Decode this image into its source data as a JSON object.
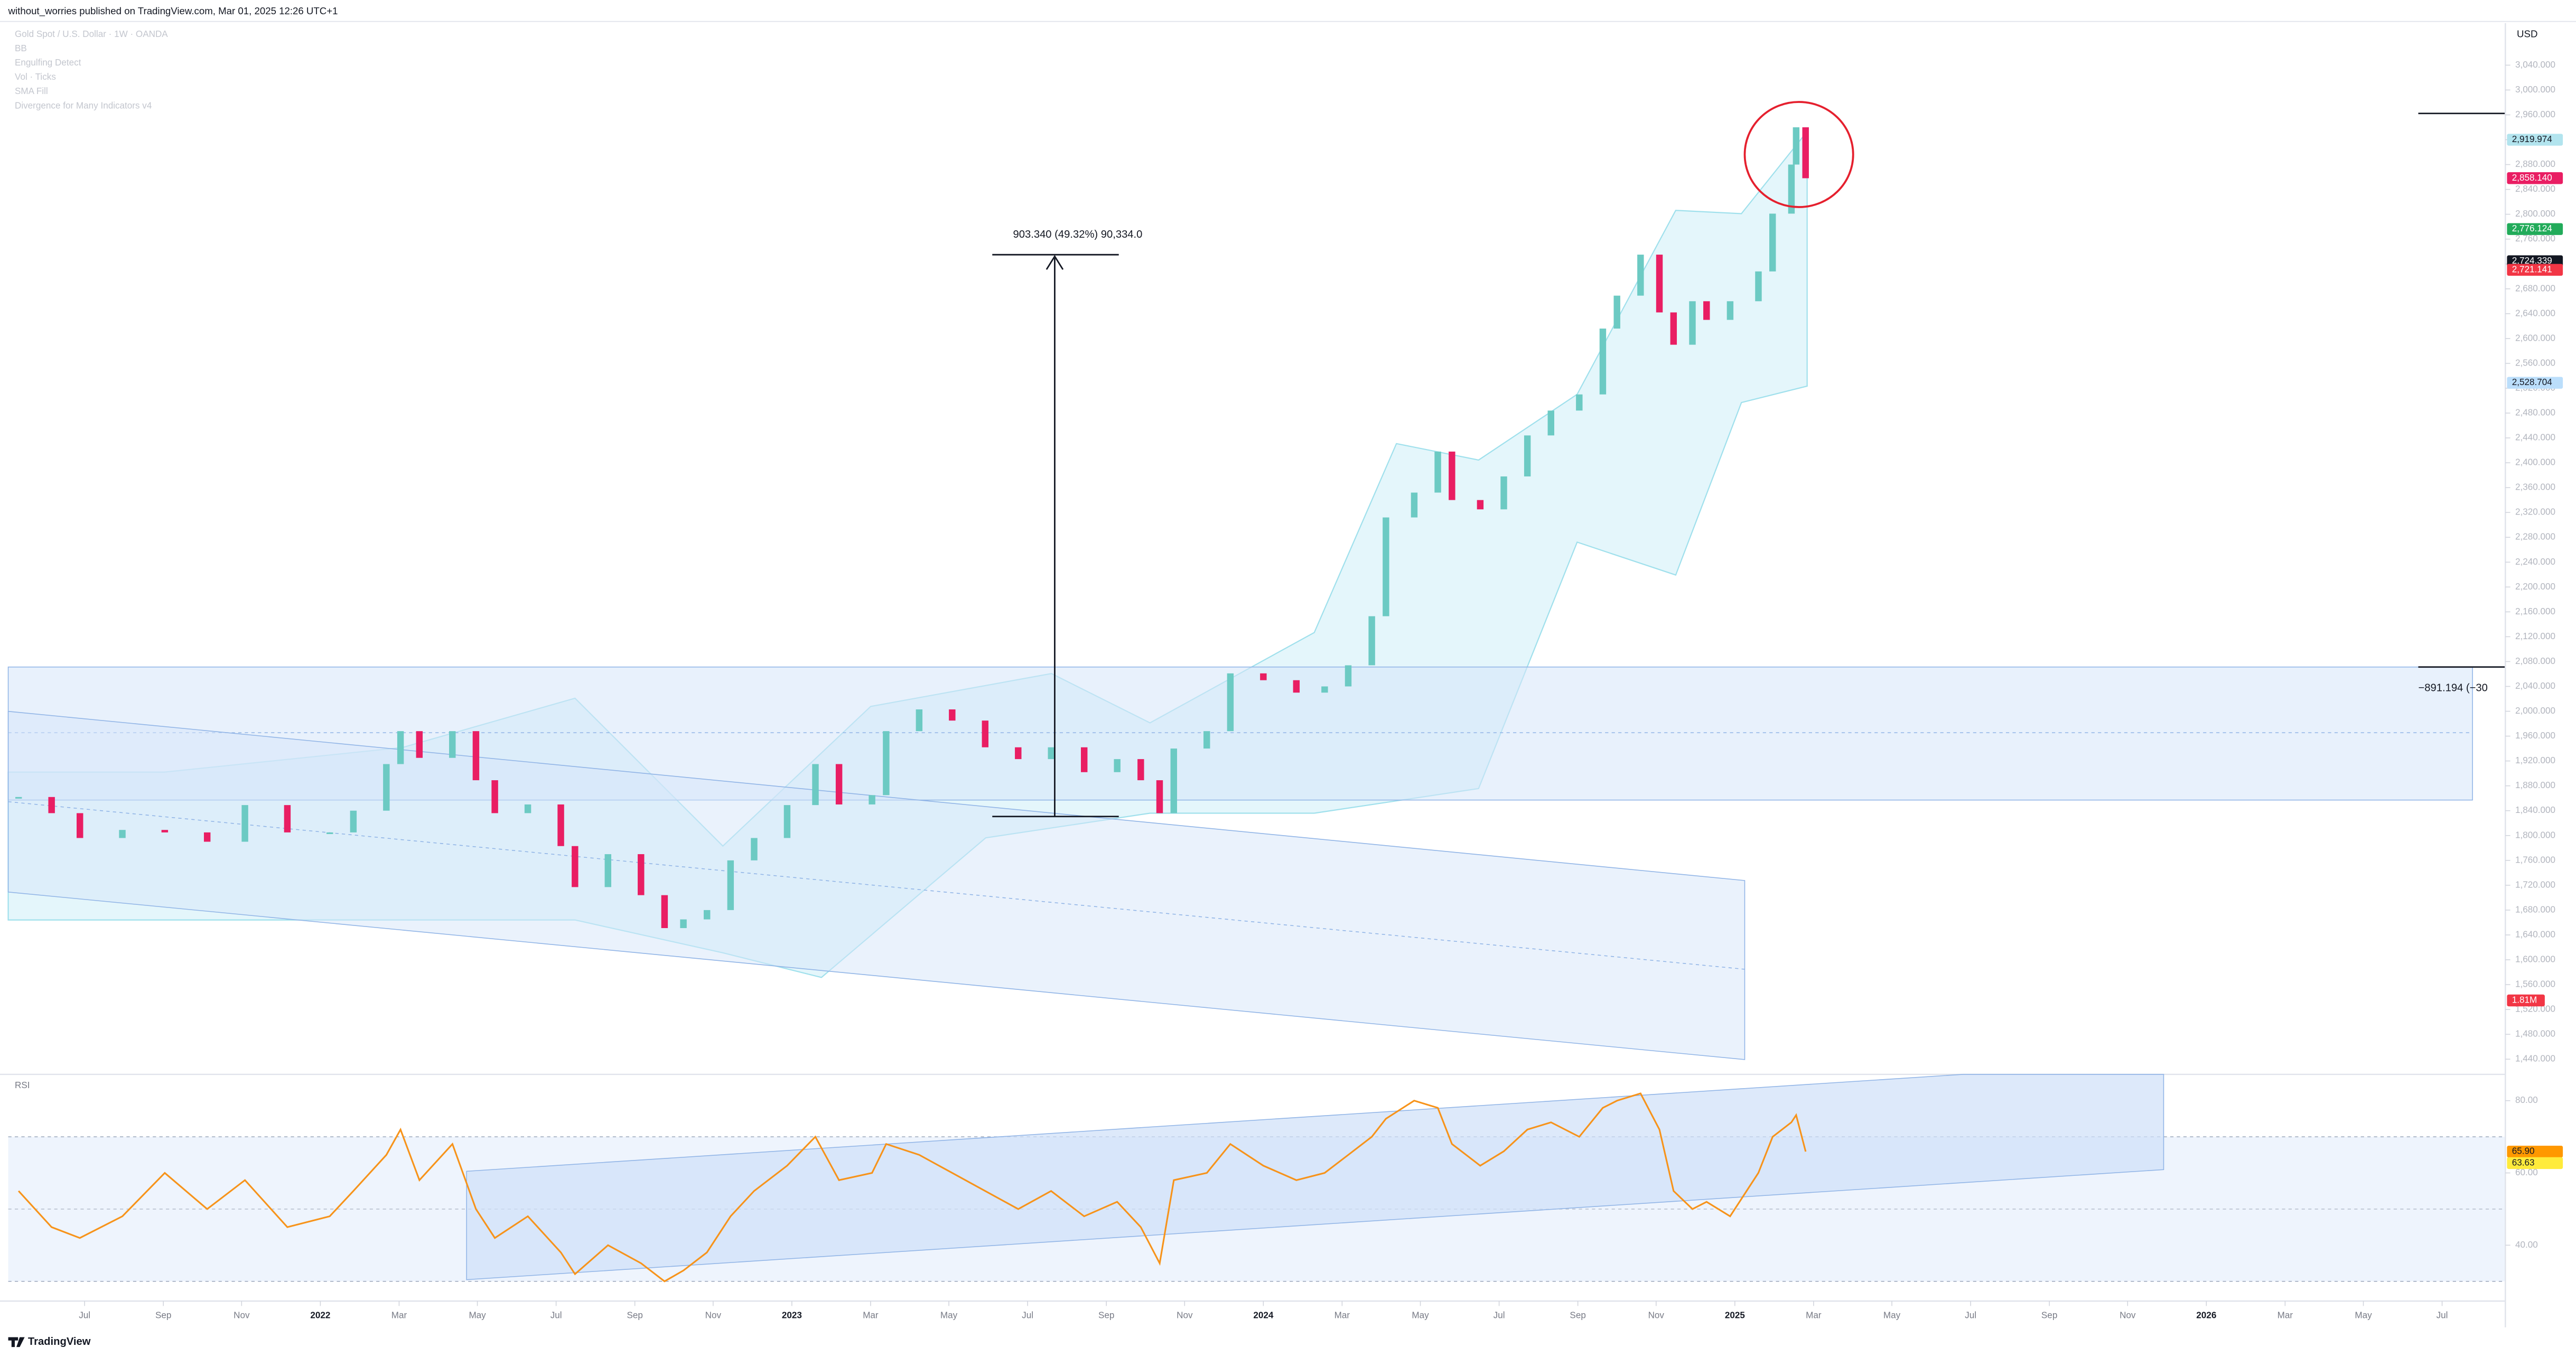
{
  "header": {
    "publisher": "without_worries published on TradingView.com, Mar 01, 2025 12:26 UTC+1"
  },
  "legend": [
    "Gold Spot / U.S. Dollar · 1W · OANDA",
    "BB",
    "Engulfing Detect",
    "Vol · Ticks",
    "SMA Fill",
    "Divergence for Many Indicators v4"
  ],
  "price_axis": {
    "unit": "USD",
    "ticks": [
      {
        "value": 1440,
        "label": "1,440.000"
      },
      {
        "value": 1480,
        "label": "1,480.000"
      },
      {
        "value": 1520,
        "label": "1,520.000"
      },
      {
        "value": 1560,
        "label": "1,560.000"
      },
      {
        "value": 1600,
        "label": "1,600.000"
      },
      {
        "value": 1640,
        "label": "1,640.000"
      },
      {
        "value": 1680,
        "label": "1,680.000"
      },
      {
        "value": 1720,
        "label": "1,720.000"
      },
      {
        "value": 1760,
        "label": "1,760.000"
      },
      {
        "value": 1800,
        "label": "1,800.000"
      },
      {
        "value": 1840,
        "label": "1,840.000"
      },
      {
        "value": 1880,
        "label": "1,880.000"
      },
      {
        "value": 1920,
        "label": "1,920.000"
      },
      {
        "value": 1960,
        "label": "1,960.000"
      },
      {
        "value": 2000,
        "label": "2,000.000"
      },
      {
        "value": 2040,
        "label": "2,040.000"
      },
      {
        "value": 2080,
        "label": "2,080.000"
      },
      {
        "value": 2120,
        "label": "2,120.000"
      },
      {
        "value": 2160,
        "label": "2,160.000"
      },
      {
        "value": 2200,
        "label": "2,200.000"
      },
      {
        "value": 2240,
        "label": "2,240.000"
      },
      {
        "value": 2280,
        "label": "2,280.000"
      },
      {
        "value": 2320,
        "label": "2,320.000"
      },
      {
        "value": 2360,
        "label": "2,360.000"
      },
      {
        "value": 2400,
        "label": "2,400.000"
      },
      {
        "value": 2440,
        "label": "2,440.000"
      },
      {
        "value": 2480,
        "label": "2,480.000"
      },
      {
        "value": 2520,
        "label": "2,520.000"
      },
      {
        "value": 2560,
        "label": "2,560.000"
      },
      {
        "value": 2600,
        "label": "2,600.000"
      },
      {
        "value": 2640,
        "label": "2,640.000"
      },
      {
        "value": 2680,
        "label": "2,680.000"
      },
      {
        "value": 2720,
        "label": "2,720.000"
      },
      {
        "value": 2760,
        "label": "2,760.000"
      },
      {
        "value": 2800,
        "label": "2,800.000"
      },
      {
        "value": 2840,
        "label": "2,840.000"
      },
      {
        "value": 2880,
        "label": "2,880.000"
      },
      {
        "value": 2920,
        "label": "2,920.000"
      },
      {
        "value": 2960,
        "label": "2,960.000"
      },
      {
        "value": 3000,
        "label": "3,000.000"
      },
      {
        "value": 3040,
        "label": "3,040.000"
      }
    ]
  },
  "time_axis": {
    "ticks": [
      {
        "value": 2021.5,
        "label": "Jul"
      },
      {
        "value": 2021.667,
        "label": "Sep"
      },
      {
        "value": 2021.833,
        "label": "Nov"
      },
      {
        "value": 2022,
        "label": "2022"
      },
      {
        "value": 2022.167,
        "label": "Mar"
      },
      {
        "value": 2022.333,
        "label": "May"
      },
      {
        "value": 2022.5,
        "label": "Jul"
      },
      {
        "value": 2022.667,
        "label": "Sep"
      },
      {
        "value": 2022.833,
        "label": "Nov"
      },
      {
        "value": 2023,
        "label": "2023"
      },
      {
        "value": 2023.167,
        "label": "Mar"
      },
      {
        "value": 2023.333,
        "label": "May"
      },
      {
        "value": 2023.5,
        "label": "Jul"
      },
      {
        "value": 2023.667,
        "label": "Sep"
      },
      {
        "value": 2023.833,
        "label": "Nov"
      },
      {
        "value": 2024,
        "label": "2024"
      },
      {
        "value": 2024.167,
        "label": "Mar"
      },
      {
        "value": 2024.333,
        "label": "May"
      },
      {
        "value": 2024.5,
        "label": "Jul"
      },
      {
        "value": 2024.667,
        "label": "Sep"
      },
      {
        "value": 2024.833,
        "label": "Nov"
      },
      {
        "value": 2025,
        "label": "2025"
      },
      {
        "value": 2025.167,
        "label": "Mar"
      },
      {
        "value": 2025.333,
        "label": "May"
      },
      {
        "value": 2025.5,
        "label": "Jul"
      },
      {
        "value": 2025.667,
        "label": "Sep"
      },
      {
        "value": 2025.833,
        "label": "Nov"
      },
      {
        "value": 2026,
        "label": "2026"
      },
      {
        "value": 2026.167,
        "label": "Mar"
      },
      {
        "value": 2026.333,
        "label": "May"
      },
      {
        "value": 2026.5,
        "label": "Jul"
      }
    ]
  },
  "candles": {
    "t": [
      2021.36,
      2021.43,
      2021.49,
      2021.58,
      2021.67,
      2021.76,
      2021.84,
      2021.93,
      2022.02,
      2022.07,
      2022.14,
      2022.17,
      2022.21,
      2022.28,
      2022.33,
      2022.37,
      2022.44,
      2022.51,
      2022.54,
      2022.61,
      2022.68,
      2022.73,
      2022.77,
      2022.82,
      2022.87,
      2022.92,
      2022.99,
      2023.05,
      2023.1,
      2023.17,
      2023.2,
      2023.27,
      2023.34,
      2023.41,
      2023.48,
      2023.55,
      2023.62,
      2023.69,
      2023.74,
      2023.78,
      2023.81,
      2023.88,
      2023.93,
      2024.0,
      2024.07,
      2024.13,
      2024.18,
      2024.23,
      2024.26,
      2024.32,
      2024.37,
      2024.4,
      2024.46,
      2024.51,
      2024.56,
      2024.61,
      2024.67,
      2024.72,
      2024.75,
      2024.8,
      2024.84,
      2024.87,
      2024.91,
      2024.94,
      2024.99,
      2025.05,
      2025.08,
      2025.12,
      2025.13,
      2025.15
    ],
    "close": [
      1862,
      1836,
      1796,
      1809,
      1805,
      1790,
      1849,
      1805,
      1805,
      1840,
      1915,
      1968,
      1925,
      1968,
      1889,
      1836,
      1850,
      1783,
      1717,
      1770,
      1704,
      1651,
      1665,
      1680,
      1760,
      1796,
      1849,
      1915,
      1850,
      1865,
      1968,
      2003,
      1985,
      1942,
      1923,
      1942,
      1902,
      1923,
      1889,
      1836,
      1940,
      1968,
      2061,
      2050,
      2030,
      2040,
      2074,
      2153,
      2312,
      2352,
      2418,
      2340,
      2325,
      2378,
      2444,
      2484,
      2510,
      2616,
      2669,
      2735,
      2642,
      2590,
      2660,
      2630,
      2660,
      2708,
      2801,
      2880,
      2940,
      2858
    ],
    "up_color": "#6ccac3",
    "down_color": "#e91e63"
  },
  "price_tags": [
    {
      "value": 2919.974,
      "label": "2,919.974",
      "bg": "#b2e4ee",
      "fg": "#131722"
    },
    {
      "value": 2858.14,
      "label": "2,858.140",
      "bg": "#e91e63",
      "fg": "#ffffff"
    },
    {
      "value": 2776.124,
      "label": "2,776.124",
      "bg": "#22ab5a",
      "fg": "#ffffff"
    },
    {
      "value": 2724.339,
      "label": "2,724.339",
      "bg": "#131722",
      "fg": "#ffffff"
    },
    {
      "value": 2721.141,
      "label": "2,721.141",
      "bg": "#f23645",
      "fg": "#ffffff"
    },
    {
      "value": 2528.704,
      "label": "2,528.704",
      "bg": "#bbdefb",
      "fg": "#131722"
    }
  ],
  "volume_tag": {
    "label": "1.81M",
    "bg": "#f23645",
    "fg": "#ffffff"
  },
  "measure": {
    "label": "903.340 (49.32%) 90,334.0"
  },
  "measure_2": {
    "label": "−891.194 (−30"
  },
  "rsi": {
    "title": "RSI",
    "color": "#f7931a",
    "values": [
      55,
      45,
      42,
      48,
      60,
      50,
      58,
      45,
      48,
      55,
      65,
      72,
      58,
      68,
      50,
      42,
      48,
      38,
      32,
      40,
      35,
      30,
      33,
      38,
      48,
      55,
      62,
      70,
      58,
      60,
      68,
      65,
      60,
      55,
      50,
      55,
      48,
      52,
      45,
      35,
      58,
      60,
      68,
      62,
      58,
      60,
      65,
      70,
      75,
      80,
      78,
      68,
      62,
      66,
      72,
      74,
      70,
      78,
      80,
      82,
      72,
      55,
      50,
      52,
      48,
      60,
      70,
      74,
      76,
      65.9
    ],
    "ticks": [
      {
        "value": 80,
        "label": "80.00"
      },
      {
        "value": 60,
        "label": "60.00"
      },
      {
        "value": 40,
        "label": "40.00"
      }
    ],
    "tags": [
      {
        "value": 65.9,
        "label": "65.90",
        "bg": "#ff9800",
        "fg": "#131722"
      },
      {
        "value": 63.63,
        "label": "63.63",
        "bg": "#ffeb3b",
        "fg": "#131722"
      }
    ]
  },
  "footer": {
    "brand": "TradingView"
  }
}
